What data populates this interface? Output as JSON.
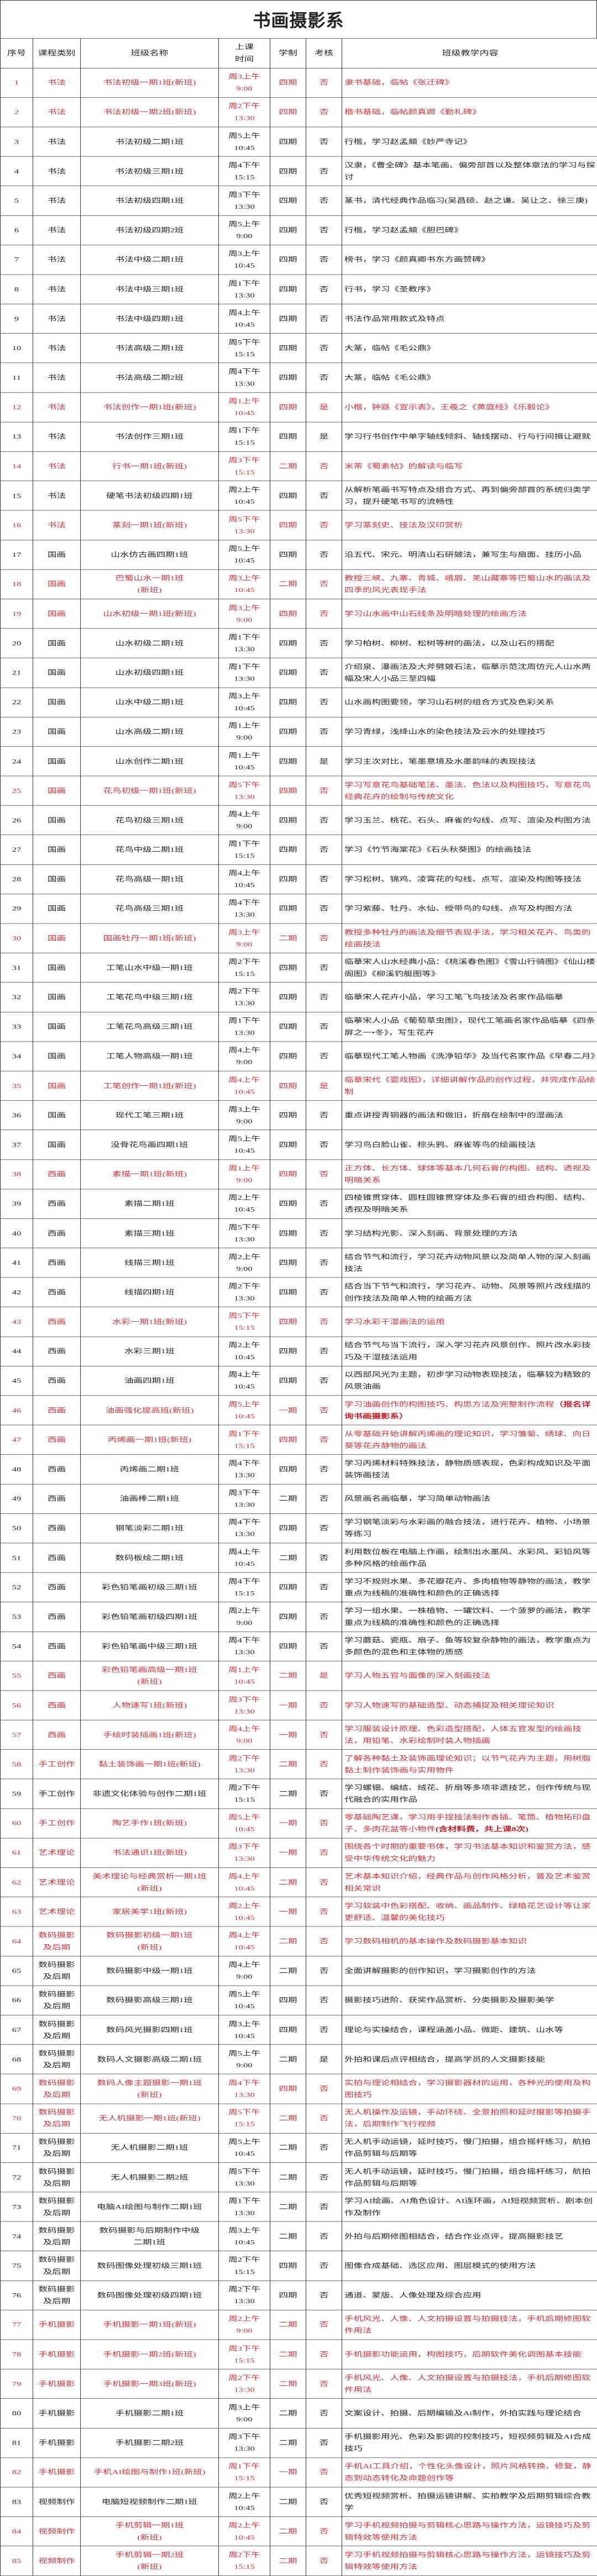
{
  "title": "书画摄影系",
  "colors": {
    "highlight": "#c8343a",
    "text": "#222222",
    "border": "#333333"
  },
  "headers": [
    "序号",
    "课程类别",
    "班级名称",
    "上课\n时间",
    "学制",
    "考核",
    "班级教学内容"
  ],
  "rows": [
    [
      "1",
      "书法",
      "书法初级一期1班(新班)",
      "周3上午",
      "9:00",
      "四期",
      "否",
      "隶书基础，临帖《张迁碑》",
      1,
      ""
    ],
    [
      "2",
      "书法",
      "书法初级一期2班(新班)",
      "周2下午",
      "13:30",
      "四期",
      "否",
      "楷书基础，临帖颜真卿《勤礼碑》",
      1,
      ""
    ],
    [
      "3",
      "书法",
      "书法初级二期1班",
      "周5上午",
      "10:45",
      "四期",
      "否",
      "行楷，学习赵孟頫《妙严寺记》",
      0,
      ""
    ],
    [
      "4",
      "书法",
      "书法初级三期1班",
      "周4下午",
      "15:15",
      "四期",
      "否",
      "汉隶，《曹全碑》基本笔画、偏旁部首以及整体章法的学习与探讨",
      0,
      ""
    ],
    [
      "5",
      "书法",
      "书法初级四期1班",
      "周3下午",
      "13:30",
      "四期",
      "否",
      "篆书，清代经典作品临习(吴昌硕、赵之谦、吴让之、徐三庚)",
      0,
      ""
    ],
    [
      "6",
      "书法",
      "书法初级四期2班",
      "周5上午",
      "9:00",
      "四期",
      "否",
      "行楷，学习赵孟頫《胆巴碑》",
      0,
      ""
    ],
    [
      "7",
      "书法",
      "书法中级二期1班",
      "周3上午",
      "10:45",
      "四期",
      "否",
      "榜书，学习《颜真卿书东方画赞碑》",
      0,
      ""
    ],
    [
      "8",
      "书法",
      "书法中级三期1班",
      "周1下午",
      "13:30",
      "四期",
      "否",
      "行书，学习《圣教序》",
      0,
      ""
    ],
    [
      "9",
      "书法",
      "书法中级四期1班",
      "周4上午",
      "10:45",
      "四期",
      "否",
      "书法作品常用款式及特点",
      0,
      ""
    ],
    [
      "10",
      "书法",
      "书法高级二期1班",
      "周5下午",
      "15:15",
      "四期",
      "否",
      "大篆，临帖《毛公鼎》",
      0,
      ""
    ],
    [
      "11",
      "书法",
      "书法高级二期2班",
      "周4下午",
      "13:30",
      "四期",
      "否",
      "大篆，临帖《毛公鼎》",
      0,
      ""
    ],
    [
      "12",
      "书法",
      "书法创作一期1班(新班)",
      "周1上午",
      "10:45",
      "四期",
      "是",
      "小楷，钟繇《宣示表》，王羲之《黄庭经》《乐毅论》",
      1,
      ""
    ],
    [
      "13",
      "书法",
      "书法创作三期1班",
      "周1下午",
      "15:15",
      "四期",
      "是",
      "学习行书创作中单字轴线倾斜、轴线摆动、行与行间揖让避就",
      0,
      ""
    ],
    [
      "14",
      "书法",
      "行书一期1班(新班)",
      "周3下午",
      "15:15",
      "二期",
      "否",
      "米芾《蜀素帖》的解读与临写",
      1,
      ""
    ],
    [
      "15",
      "书法",
      "硬笔书法初级四期1班",
      "周2上午",
      "10:45",
      "四期",
      "否",
      "从解析笔画书写特点及组合方式、再到偏旁部首的系统归类学习，提升硬笔书写的流畅性",
      0,
      ""
    ],
    [
      "16",
      "书法",
      "篆刻一期1班(新班)",
      "周5下午",
      "13:30",
      "四期",
      "否",
      "学习篆刻史、技法及汉印赏析",
      1,
      ""
    ],
    [
      "17",
      "国画",
      "山水仿古画四期1班",
      "周5上午",
      "10:45",
      "四期",
      "否",
      "沿五代、宋元、明清山石研皴法，兼写生与扇面、挂历小品",
      0,
      ""
    ],
    [
      "18",
      "国画",
      "巴蜀山水一期1班\n(新班)",
      "周3上午",
      "10:45",
      "二期",
      "否",
      "教授三峡、九寨、青城、峨眉、羌山藏寨等巴蜀山水的画法及四季的风光表现手法",
      1,
      ""
    ],
    [
      "19",
      "国画",
      "山水初级一期1班(新班)",
      "周3上午",
      "9:00",
      "四期",
      "否",
      "学习山水画中山石线条及明暗处理的绘画方法",
      1,
      ""
    ],
    [
      "20",
      "国画",
      "山水初级二期1班",
      "周1下午",
      "13:30",
      "四期",
      "否",
      "学习柏树、柳树、松树等树的画法，以及山石的搭配",
      0,
      ""
    ],
    [
      "21",
      "国画",
      "山水初级四期1班",
      "周1下午",
      "13:30",
      "四期",
      "否",
      "介绍泉、瀑画法及大斧劈皴石法，临摹示范沈周仿元人山水两幅及宋人小品三至四幅",
      0,
      ""
    ],
    [
      "22",
      "国画",
      "山水中级二期1班",
      "周3上午",
      "10:45",
      "四期",
      "否",
      "山水画构图要领，学习山石树的组合方式及色彩关系",
      0,
      ""
    ],
    [
      "23",
      "国画",
      "山水高级二期1班",
      "周1上午",
      "9:00",
      "四期",
      "否",
      "学习青绿，浅绛山水的染色技法及云水的处理技巧",
      0,
      ""
    ],
    [
      "24",
      "国画",
      "山水创作二期1班",
      "周1上午",
      "10:45",
      "四期",
      "是",
      "学习主次对比，笔墨意境及水墨韵味的表现技法",
      0,
      ""
    ],
    [
      "25",
      "国画",
      "花鸟初级一期1班(新班)",
      "周5下午",
      "13:30",
      "四期",
      "否",
      "学习写意花鸟基础笔法、墨法、色法以及构图技巧，写意花鸟经典花卉的绘制与传统文化",
      1,
      ""
    ],
    [
      "26",
      "国画",
      "花鸟初级三期1班",
      "周4上午",
      "9:00",
      "四期",
      "否",
      "学习玉兰、桃花、石头、麻雀的勾线、点写、渲染及构图方法",
      0,
      ""
    ],
    [
      "27",
      "国画",
      "花鸟中级二期1班",
      "周1下午",
      "15:15",
      "四期",
      "否",
      "学习《竹节海棠花》《石头秋葵图》的绘画技法",
      0,
      ""
    ],
    [
      "28",
      "国画",
      "花鸟高级一期1班",
      "周4上午",
      "10:45",
      "四期",
      "否",
      "学习松树、锦鸡、凌霄花的勾线、点写、渲染及构图等技法",
      0,
      ""
    ],
    [
      "29",
      "国画",
      "花鸟高级三期1班",
      "周4下午",
      "13:30",
      "四期",
      "否",
      "学习紫藤、牡丹、水仙、绶带鸟的勾线、点写及构图方法",
      0,
      ""
    ],
    [
      "30",
      "国画",
      "国画牡丹一期1班(新班)",
      "周3上午",
      "9:00",
      "二期",
      "否",
      "教授多种牡丹的画法及细节表现手法，学习相关花卉、鸟类的绘画技法",
      1,
      ""
    ],
    [
      "31",
      "国画",
      "工笔山水中级一期1班",
      "周2下午",
      "15:15",
      "四期",
      "否",
      "临摹宋人山水经典小品：《桃溪春色图》《雪山行骑图》《仙山楼阁图》《柳溪钓艇图等》",
      0,
      ""
    ],
    [
      "32",
      "国画",
      "工笔花鸟中级三期1班",
      "周2下午",
      "13:30",
      "四期",
      "否",
      "临摹宋人花卉小品，学习工笔飞鸟技法及名家作品临摹",
      0,
      ""
    ],
    [
      "33",
      "国画",
      "工笔花鸟高级三期1班",
      "周1下午",
      "13:30",
      "四期",
      "否",
      "临摹宋人小品《葡萄草虫图》，现代工笔画名家作品临摹《四条屏之一•冬》，写生花卉",
      0,
      ""
    ],
    [
      "34",
      "国画",
      "工笔人物高级一期1班",
      "周4上午",
      "9:00",
      "四期",
      "否",
      "临摹现代工笔人物画《洗净铅华》及当代名家作品《早春二月》",
      0,
      ""
    ],
    [
      "35",
      "国画",
      "工笔创作一期1班(新班)",
      "周4上午",
      "10:45",
      "四期",
      "是",
      "临摹宋代《婴戏图》，详细讲解作品的创作过程，并完成作品绘制",
      1,
      ""
    ],
    [
      "36",
      "国画",
      "现代工笔三期1班",
      "周3上午",
      "9:00",
      "四期",
      "否",
      "重点讲授青铜器的画法和做旧，折扇在绘制中的湿画法",
      0,
      ""
    ],
    [
      "37",
      "国画",
      "没骨花鸟画四期1班",
      "周5上午",
      "10:45",
      "四期",
      "否",
      "学习鸟白脸山雀、棕头鸦、麻雀等鸟的绘画技法",
      0,
      ""
    ],
    [
      "38",
      "西画",
      "素描一期1班(新班)",
      "周1上午",
      "9:00",
      "四期",
      "否",
      "正方体、长方体、球体等基本几何石膏的构图、结构、透视及明暗关系",
      1,
      ""
    ],
    [
      "39",
      "西画",
      "素描二期1班",
      "周2上午",
      "10:45",
      "四期",
      "否",
      "四棱锥贯穿体、圆柱圆锥贯穿体及多石膏的组合构图、结构、透视及明暗关系",
      0,
      ""
    ],
    [
      "40",
      "西画",
      "素描三期1班",
      "周5下午",
      "13:30",
      "四期",
      "否",
      "学习结构光影、深入刻画、背景处理的方法",
      0,
      ""
    ],
    [
      "41",
      "西画",
      "线描三期1班",
      "周2上午",
      "9:00",
      "四期",
      "否",
      "结合节气和流行，学习花卉动物风景以及简单人物的深入刻画技法",
      0,
      ""
    ],
    [
      "42",
      "西画",
      "线描四期1班",
      "周2下午",
      "13:30",
      "四期",
      "否",
      "结合当下节气和流行，学习花卉、动物、风景等照片改线描的创作技法及简单人物的绘画方法",
      0,
      ""
    ],
    [
      "43",
      "西画",
      "水彩一期1班(新班)",
      "周5下午",
      "15:15",
      "四期",
      "否",
      "学习水彩干湿画法的运用",
      1,
      ""
    ],
    [
      "44",
      "西画",
      "水彩三期1班",
      "周2上午",
      "10:45",
      "四期",
      "否",
      "结合节气与当下流行，深入学习花卉风景创作、照片改水彩技巧及干湿技法运用",
      0,
      ""
    ],
    [
      "45",
      "西画",
      "油画四期1班",
      "周4上午",
      "10:45",
      "四期",
      "否",
      "以西部风光为主题，初步学习动物表现技法，临摹较为精致的风景油画",
      0,
      ""
    ],
    [
      "46",
      "西画",
      "油画强化提高班(新班)",
      "周5上午",
      "10:45",
      "一期",
      "否",
      "学习油画创作的构图技巧、构思方法及完整制作流程",
      1,
      "（报名详询书画摄影系）"
    ],
    [
      "47",
      "西画",
      "丙烯画一期1班(新班)",
      "周1下午",
      "15:15",
      "四期",
      "否",
      "从零基础开始讲解丙烯画的理论知识，学习雏菊、绣球、向日葵等花卉静物的画法",
      1,
      ""
    ],
    [
      "48",
      "西画",
      "丙烯画二期1班",
      "周4下午",
      "13:30",
      "四期",
      "否",
      "学习丙烯材料特殊技法，静物质感表现，色彩构成知识及平面装饰画技法",
      0,
      ""
    ],
    [
      "49",
      "西画",
      "油画棒二期1班",
      "周3下午",
      "13:30",
      "二期",
      "否",
      "风景画名画临摹，学习简单动物画法",
      0,
      ""
    ],
    [
      "50",
      "西画",
      "钢笔淡彩二期1班",
      "周4下午",
      "13:30",
      "四期",
      "否",
      "学习钢笔淡彩与水彩画的融合技法，进行花卉、植物、小场景等练习",
      0,
      ""
    ],
    [
      "51",
      "西画",
      "数码板绘二期1班",
      "周4上午",
      "10:45",
      "二期",
      "否",
      "利用数位板在电脑上作画，绘制出水墨风、水彩风、彩铅风等多种风格的绘画作品",
      0,
      ""
    ],
    [
      "52",
      "西画",
      "彩色铅笔画初级三期1班",
      "周4下午",
      "15:15",
      "四期",
      "否",
      "学习不规则水果、多花瓣花卉、多肉植物等静物的画法，教学重点为线稿的准确性和颜色的正确选择",
      0,
      ""
    ],
    [
      "53",
      "西画",
      "彩色铅笔画初级四期1班",
      "周2上午",
      "9:00",
      "四期",
      "否",
      "学习一组水果、一株植物、一罐饮料、一个菠萝的画法，教学重点为线稿的准确性和颜色的正确选择",
      0,
      ""
    ],
    [
      "54",
      "西画",
      "彩色铅笔画中级三期1班",
      "周4下午",
      "13:30",
      "四期",
      "否",
      "学习蘑菇、瓷瓶、扇子、鱼等较复杂静物的画法，教学重点为多颜色的混色和主体物的质感",
      0,
      ""
    ],
    [
      "55",
      "西画",
      "彩色铅笔画高级一期1班\n(新班)",
      "周1上午",
      "10:45",
      "二期",
      "是",
      "学习人物五官与面像的深入刻画技法",
      1,
      ""
    ],
    [
      "56",
      "西画",
      "人物速写1班(新班)",
      "周3下午",
      "13:30",
      "一期",
      "否",
      "学习人物速写的基础造型、动态捕捉及相关理论知识",
      1,
      ""
    ],
    [
      "57",
      "西画",
      "手绘时装插画1班(新班)",
      "周4上午",
      "9:00",
      "一期",
      "否",
      "学习服装设计原理、色彩造型搭配，人体五官发型的绘画技法，用铅笔、水彩绘制时装人物插画",
      1,
      ""
    ],
    [
      "58",
      "手工创作",
      "黏土装饰画一期1班(新班)",
      "周2下午",
      "13:30",
      "二期",
      "否",
      "了解各种黏土及装饰画理论知识；以节气花卉为主题，用树脂黏土制作装饰画与实用物件",
      1,
      ""
    ],
    [
      "59",
      "手工创作",
      "非遗文化体验与创作二期1班",
      "周2下午",
      "15:15",
      "二期",
      "否",
      "学习螺钿、编结、绒花、折扇等多项非遗技艺，创作传统与现代融合的实用作品",
      0,
      ""
    ],
    [
      "60",
      "手工创作",
      "陶艺手作1班(新班)",
      "周5上午",
      "10:45",
      "一期",
      "否",
      "零基础陶艺课，学习用手捏技法制作香插、笔筒、植物拓印盘子、多肉花盆等小物件",
      1,
      "(含材料费，共上课8次)"
    ],
    [
      "61",
      "艺术理论",
      "书法通识1班(新班)",
      "周3下午",
      "13:30",
      "一期",
      "否",
      "围绕各个时期的重要书体，学习书法基本知识和鉴赏方法，感受中华传统文化的魅力",
      1,
      ""
    ],
    [
      "62",
      "艺术理论",
      "美术理论与经典赏析一期1班\n(新班)",
      "周4上午",
      "10:45",
      "二期",
      "否",
      "艺术基本知识介绍，经典作品与创作风格分析，普及艺术鉴赏相关常识",
      1,
      ""
    ],
    [
      "63",
      "艺术理论",
      "家居美学1班(新班)",
      "周2上午",
      "10:45",
      "一期",
      "否",
      "学习软装中色彩搭配、收纳、画品制作、绿植花艺设计等让家更舒适、温馨的美化技巧",
      1,
      ""
    ],
    [
      "64",
      "数码摄影\n及后期",
      "数码摄影初级一期1班\n(新班)",
      "周4上午",
      "10:45",
      "二期",
      "否",
      "学习数码相机的基本操作及数码摄影基本知识",
      1,
      ""
    ],
    [
      "65",
      "数码摄影\n及后期",
      "数码摄影中级一期1班",
      "周4上午",
      "9:00",
      "二期",
      "否",
      "全面讲解摄影的创作知识，学习摄影创作的方法",
      0,
      ""
    ],
    [
      "66",
      "数码摄影\n及后期",
      "数码摄影高级三期1班",
      "周5上午",
      "10:45",
      "四期",
      "否",
      "摄影技巧进阶、获奖作品赏析、分类摄影及摄影美学",
      0,
      ""
    ],
    [
      "67",
      "数码摄影\n及后期",
      "数码风光摄影四期1班",
      "周3上午",
      "10:45",
      "四期",
      "否",
      "理论与实操结合，课程涵盖小品、微距、建筑、山水等",
      0,
      ""
    ],
    [
      "68",
      "数码摄影\n及后期",
      "数码人文摄影高级二期1班",
      "周5上午",
      "9:00",
      "二期",
      "是",
      "外拍和课后点评相结合，提高学员的人文摄影技能",
      0,
      ""
    ],
    [
      "69",
      "数码摄影\n及后期",
      "数码人像主题摄影一期1班\n(新班)",
      "周4下午",
      "13:30",
      "四期",
      "否",
      "实拍与理论相结合，学习摄影器材的运用，各种光的使用及构图技巧",
      1,
      ""
    ],
    [
      "70",
      "数码摄影\n及后期",
      "无人机摄影一期1班(新班)",
      "周5下午",
      "15:15",
      "二期",
      "否",
      "无人机操作及运镜，手动环绕、全景拍照和延时摄影等拍摄手法，后期制作飞行视频",
      1,
      ""
    ],
    [
      "71",
      "数码摄影\n及后期",
      "无人机摄影二期1班",
      "周5上午",
      "10:45",
      "二期",
      "否",
      "无人机手动运镜，延时技巧，慢门拍摄，组合摇杆练习，航拍作品剪辑与后期等",
      0,
      ""
    ],
    [
      "72",
      "数码摄影\n及后期",
      "无人机摄影二期2班",
      "周5下午",
      "13:30",
      "二期",
      "否",
      "无人机手动运镜，延时技巧，慢门拍摄，组合摇杆练习，航拍作品剪辑与后期等",
      0,
      ""
    ],
    [
      "73",
      "数码摄影\n及后期",
      "电脑AI绘图与制作二期1班",
      "周1下午",
      "13:30",
      "二期",
      "否",
      "学习AI绘画、AI角色设计、AI连环画，AI短视频赏析、剧本创作及制作",
      0,
      ""
    ],
    [
      "74",
      "数码摄影\n及后期",
      "数码摄影与后期制作中级\n二期1班",
      "周3上午",
      "10:45",
      "二期",
      "否",
      "外拍与后期修图相结合，结合作业点评，提高摄影技艺",
      0,
      ""
    ],
    [
      "75",
      "数码摄影\n及后期",
      "数码图像处理初级三期1班",
      "周2下午",
      "15:15",
      "四期",
      "否",
      "图像合成基础、选区应用、图层模式的使用方法",
      0,
      ""
    ],
    [
      "76",
      "数码摄影\n及后期",
      "数码图像处理初级四期1班",
      "周2下午",
      "13:30",
      "四期",
      "否",
      "通道、蒙版、人像处理及综合应用",
      0,
      ""
    ],
    [
      "77",
      "手机摄影",
      "手机摄影一期1班(新班)",
      "周2上午",
      "9:00",
      "二期",
      "否",
      "手机风光、人像、人文拍摄设置与拍摄技法，手机后期修图软件用法",
      1,
      ""
    ],
    [
      "78",
      "手机摄影",
      "手机摄影一期2班(新班)",
      "周3下午",
      "15:15",
      "二期",
      "否",
      "手机摄影功能运用，构图技巧，后期软件美化调图基本技能",
      1,
      ""
    ],
    [
      "79",
      "手机摄影",
      "手机摄影一期3班(新班)",
      "周2下午",
      "13:30",
      "二期",
      "否",
      "手机风光、人像、人文拍摄设置与拍摄技法，手机后期修图软件用法",
      1,
      ""
    ],
    [
      "80",
      "手机摄影",
      "手机摄影二期1班",
      "周3上午",
      "9:00",
      "二期",
      "否",
      "文案设计、拍摄、后期编输及Ai制作，外拍实践与理论结合",
      0,
      ""
    ],
    [
      "81",
      "手机摄影",
      "手机摄影二期2班",
      "周3下午",
      "13:30",
      "二期",
      "否",
      "手机摄影用光、色彩及影调的控制技巧，短视频剪辑及AI合成技巧",
      0,
      ""
    ],
    [
      "82",
      "手机摄影",
      "手机AI绘图与制作1班(新班)",
      "周1下午",
      "15:15",
      "一期",
      "否",
      "手机AI工具介绍，个性化头像设计，照片风格转换、修复，静态到动态转化及命题创作等",
      1,
      ""
    ],
    [
      "83",
      "视频制作",
      "电脑短视频制作二期1班",
      "周2上午",
      "10:45",
      "二期",
      "否",
      "优秀短视频赏析、拍摄运镜讲解、实拍教学及后期剪辑综合教学",
      0,
      ""
    ],
    [
      "84",
      "视频制作",
      "手机剪辑一期1班\n(新班)",
      "周2上午",
      "10:45",
      "二期",
      "否",
      "学习手机视频拍摄与剪辑核心思路与操作方法，运镜技巧及剪辑特效等使用方法",
      1,
      ""
    ],
    [
      "85",
      "视频制作",
      "手机剪辑一期2班\n(新班)",
      "周2下午",
      "15:15",
      "二期",
      "否",
      "学习手机视频拍摄与剪辑核心思路与操作方法，运镜技巧及剪辑特效等使用方法",
      1,
      ""
    ]
  ]
}
